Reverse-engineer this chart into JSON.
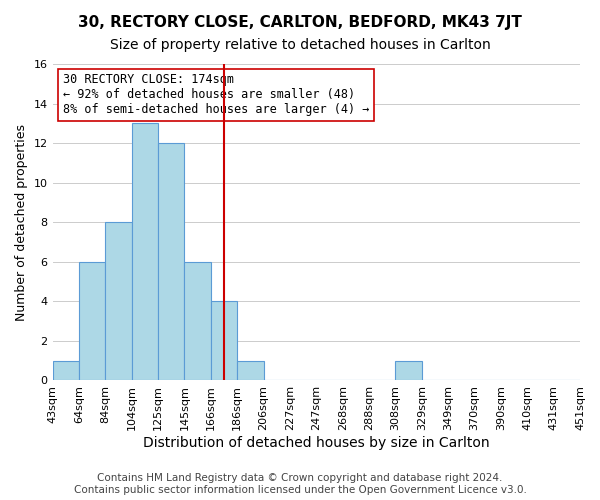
{
  "title": "30, RECTORY CLOSE, CARLTON, BEDFORD, MK43 7JT",
  "subtitle": "Size of property relative to detached houses in Carlton",
  "xlabel": "Distribution of detached houses by size in Carlton",
  "ylabel": "Number of detached properties",
  "bin_edges": [
    "43sqm",
    "64sqm",
    "84sqm",
    "104sqm",
    "125sqm",
    "145sqm",
    "166sqm",
    "186sqm",
    "206sqm",
    "227sqm",
    "247sqm",
    "268sqm",
    "288sqm",
    "308sqm",
    "329sqm",
    "349sqm",
    "370sqm",
    "390sqm",
    "410sqm",
    "431sqm",
    "451sqm"
  ],
  "bar_values": [
    1,
    6,
    8,
    13,
    12,
    6,
    4,
    1,
    0,
    0,
    0,
    0,
    0,
    1,
    0,
    0,
    0,
    0,
    0,
    0
  ],
  "bar_color": "#add8e6",
  "bar_edge_color": "#5b9bd5",
  "vline_x": 6.5,
  "vline_color": "#cc0000",
  "annotation_line1": "30 RECTORY CLOSE: 174sqm",
  "annotation_line2": "← 92% of detached houses are smaller (48)",
  "annotation_line3": "8% of semi-detached houses are larger (4) →",
  "ylim": [
    0,
    16
  ],
  "yticks": [
    0,
    2,
    4,
    6,
    8,
    10,
    12,
    14,
    16
  ],
  "footer_line1": "Contains HM Land Registry data © Crown copyright and database right 2024.",
  "footer_line2": "Contains public sector information licensed under the Open Government Licence v3.0.",
  "background_color": "#ffffff",
  "grid_color": "#cccccc",
  "title_fontsize": 11,
  "subtitle_fontsize": 10,
  "xlabel_fontsize": 10,
  "ylabel_fontsize": 9,
  "tick_fontsize": 8,
  "footer_fontsize": 7.5,
  "annotation_fontsize": 8.5
}
